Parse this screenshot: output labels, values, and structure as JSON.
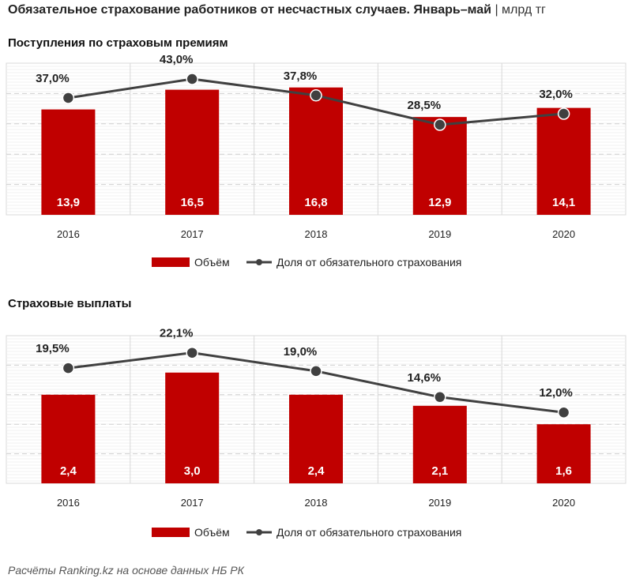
{
  "title": "Обязательное страхование работников от несчастных случаев. Январь–май",
  "unit": "| млрд тг",
  "source": "Расчёты Ranking.kz на основе данных НБ РК",
  "colors": {
    "bar": "#c00000",
    "line": "#404040"
  },
  "chart_data": [
    {
      "type": "bar+line",
      "subtitle": "Поступления  по страховым  премиям",
      "categories": [
        "2016",
        "2017",
        "2018",
        "2019",
        "2020"
      ],
      "bar_values": [
        13.9,
        16.5,
        16.8,
        12.9,
        14.1
      ],
      "bar_labels": [
        "13,9",
        "16,5",
        "16,8",
        "12,9",
        "14,1"
      ],
      "line_values": [
        37.0,
        43.0,
        37.8,
        28.5,
        32.0
      ],
      "line_labels": [
        "37,0%",
        "43,0%",
        "37,8%",
        "28,5%",
        "32,0%"
      ],
      "bar_ylim": [
        0,
        20
      ],
      "line_ylim": [
        0,
        48
      ],
      "grid": true,
      "legend": "bottom",
      "legend_bar": "Объём",
      "legend_line": "Доля от обязательного страхования"
    },
    {
      "type": "bar+line",
      "subtitle": "Страховые  выплаты",
      "categories": [
        "2016",
        "2017",
        "2018",
        "2019",
        "2020"
      ],
      "bar_values": [
        2.4,
        3.0,
        2.4,
        2.1,
        1.6
      ],
      "bar_labels": [
        "2,4",
        "3,0",
        "2,4",
        "2,1",
        "1,6"
      ],
      "line_values": [
        19.5,
        22.1,
        19.0,
        14.6,
        12.0
      ],
      "line_labels": [
        "19,5%",
        "22,1%",
        "19,0%",
        "14,6%",
        "12,0%"
      ],
      "bar_ylim": [
        0,
        4
      ],
      "line_ylim": [
        0,
        25
      ],
      "grid": true,
      "legend": "bottom",
      "legend_bar": "Объём",
      "legend_line": "Доля от обязательного страхования"
    }
  ]
}
